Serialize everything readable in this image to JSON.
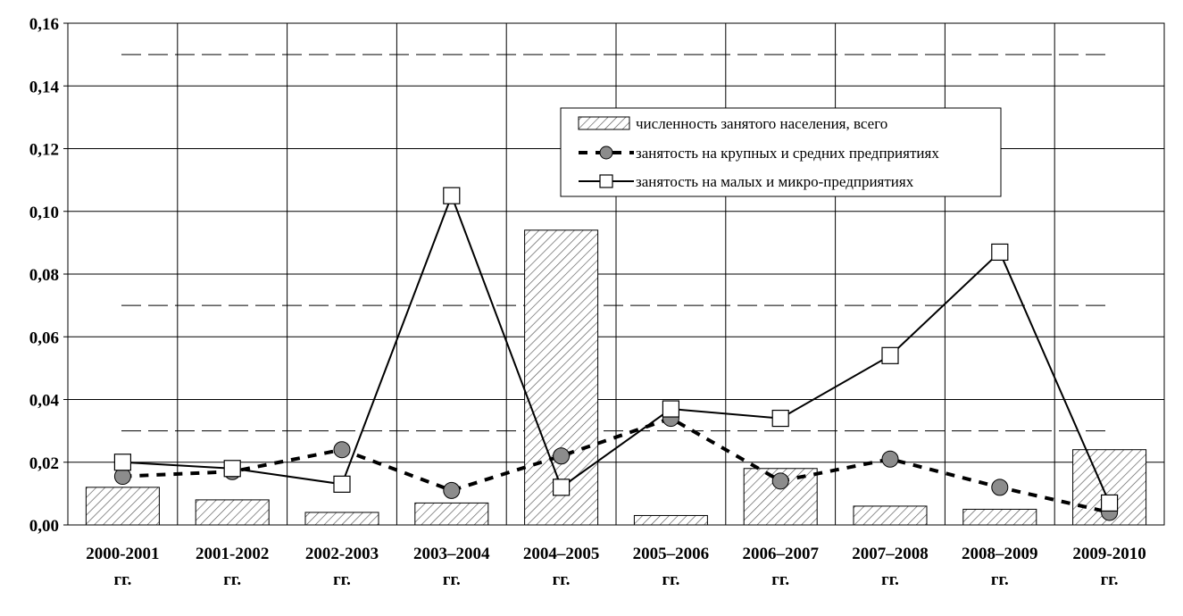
{
  "chart_data": {
    "type": "bar",
    "categories": [
      [
        "2000-2001",
        "гг."
      ],
      [
        "2001-2002",
        "гг."
      ],
      [
        "2002-2003",
        "гг."
      ],
      [
        "2003–2004",
        "гг."
      ],
      [
        "2004–2005",
        "гг."
      ],
      [
        "2005–2006",
        "гг."
      ],
      [
        "2006–2007",
        "гг."
      ],
      [
        "2007–2008",
        "гг."
      ],
      [
        "2008–2009",
        "гг."
      ],
      [
        "2009-2010",
        "гг."
      ]
    ],
    "series": [
      {
        "name": "численность занятого населения, всего",
        "kind": "bar",
        "values": [
          0.012,
          0.008,
          0.004,
          0.007,
          0.094,
          0.003,
          0.018,
          0.006,
          0.005,
          0.024
        ]
      },
      {
        "name": "занятость на крупных и средних предприятиях",
        "kind": "line-dashed-circle",
        "values": [
          0.0155,
          0.017,
          0.024,
          0.011,
          0.022,
          0.034,
          0.014,
          0.021,
          0.012,
          0.004
        ]
      },
      {
        "name": "занятость на малых и микро-предприятиях",
        "kind": "line-solid-square",
        "values": [
          0.02,
          0.018,
          0.013,
          0.105,
          0.012,
          0.037,
          0.034,
          0.054,
          0.087,
          0.007
        ]
      }
    ],
    "reference_lines": [
      0.15,
      0.07,
      0.03
    ],
    "ylim": [
      0,
      0.16
    ],
    "yticks": [
      "0,00",
      "0,02",
      "0,04",
      "0,06",
      "0,08",
      "0,10",
      "0,12",
      "0,14",
      "0,16"
    ],
    "grid": true,
    "legend_position": "upper-right"
  }
}
